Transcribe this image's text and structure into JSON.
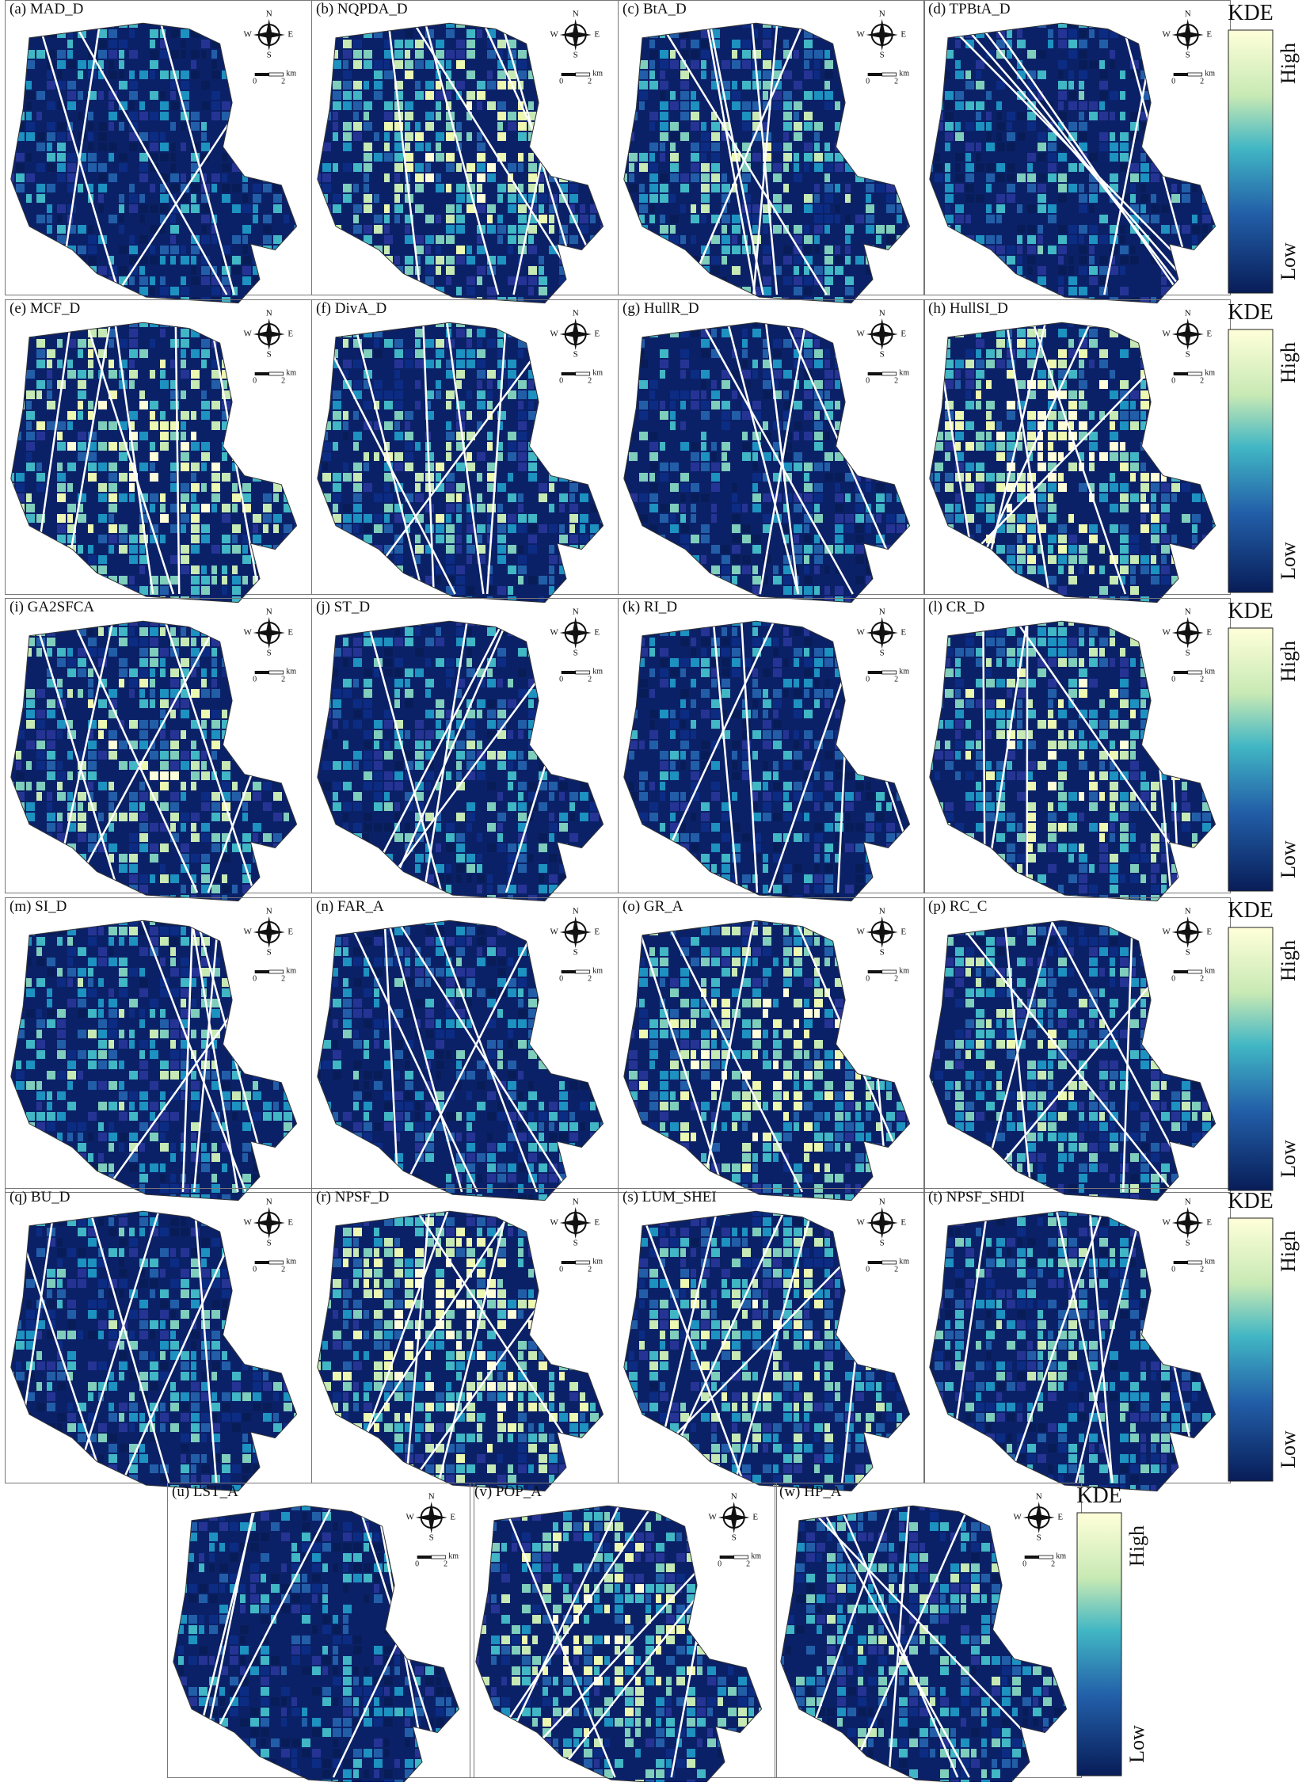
{
  "panels": [
    {
      "label": "(a) MAD_D"
    },
    {
      "label": "(b) NQPDA_D"
    },
    {
      "label": "(c) BtA_D"
    },
    {
      "label": "(d) TPBtA_D"
    },
    {
      "label": "(e) MCF_D"
    },
    {
      "label": "(f) DivA_D"
    },
    {
      "label": "(g) HullR_D"
    },
    {
      "label": "(h) HullSI_D"
    },
    {
      "label": "(i) GA2SFCA"
    },
    {
      "label": "(j) ST_D"
    },
    {
      "label": "(k) RI_D"
    },
    {
      "label": "(l) CR_D"
    },
    {
      "label": "(m) SI_D"
    },
    {
      "label": "(n) FAR_A"
    },
    {
      "label": "(o) GR_A"
    },
    {
      "label": "(p) RC_C"
    },
    {
      "label": "(q) BU_D"
    },
    {
      "label": "(r) NPSF_D"
    },
    {
      "label": "(s) LUM_SHEI"
    },
    {
      "label": "(t) NPSF_SHDI"
    },
    {
      "label": "(u) LST_A"
    },
    {
      "label": "(v) POP_A"
    },
    {
      "label": "(w) HP_A"
    }
  ],
  "compass": {
    "n": "N",
    "s": "S",
    "w": "W",
    "e": "E"
  },
  "scale_bar": {
    "start": "0",
    "end": "2",
    "unit": "km"
  },
  "legend": {
    "title": "KDE",
    "high": "High",
    "low": "Low"
  }
}
